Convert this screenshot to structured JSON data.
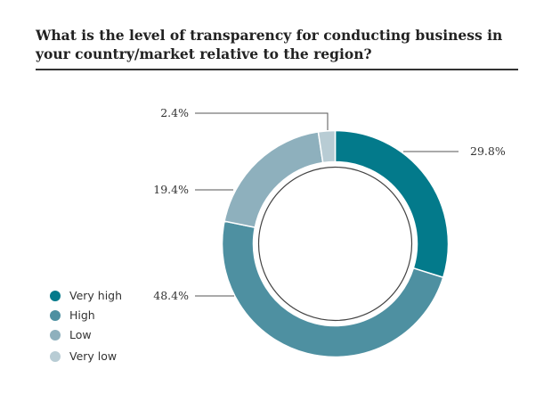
{
  "chart_data": {
    "type": "pie",
    "title": "What is the level of transparency for conducting business in your country/market relative to the region?",
    "categories": [
      "Very high",
      "High",
      "Low",
      "Very low"
    ],
    "values": [
      29.8,
      48.4,
      19.4,
      2.4
    ],
    "labels": [
      "29.8%",
      "48.4%",
      "19.4%",
      "2.4%"
    ],
    "colors": [
      "#037a8b",
      "#4e90a1",
      "#8eb0bd",
      "#b8ccd4"
    ],
    "donut": true,
    "legend": "bottom-left"
  }
}
